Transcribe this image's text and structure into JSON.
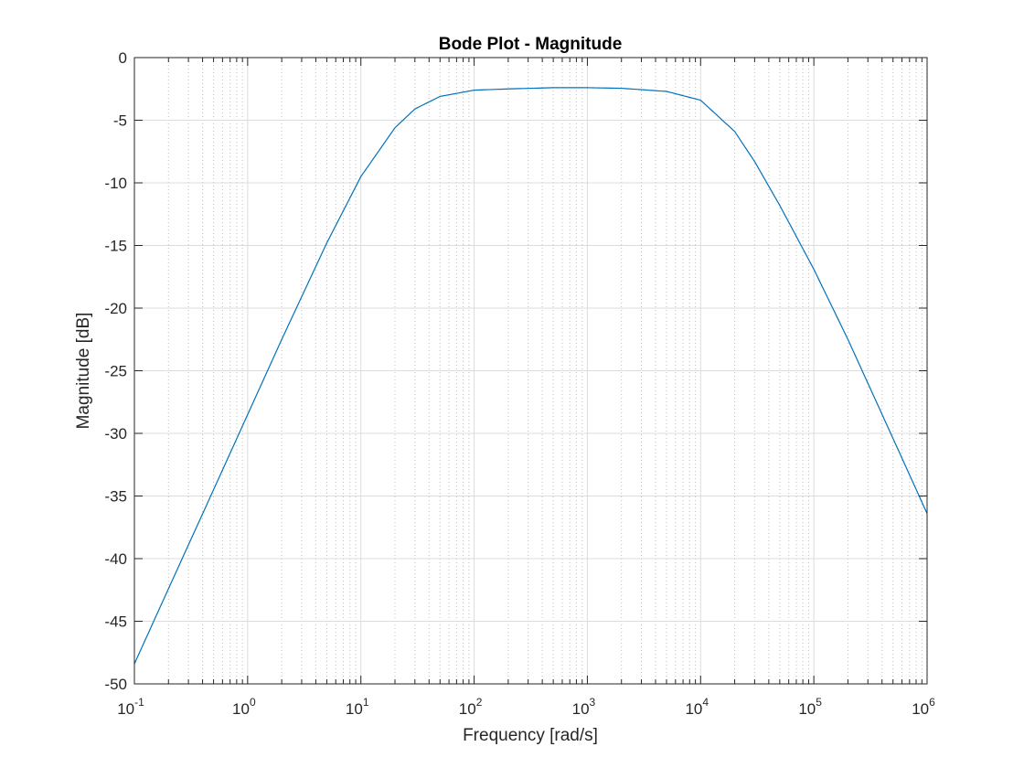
{
  "chart_data": {
    "type": "line",
    "title": "Bode Plot - Magnitude",
    "xlabel": "Frequency [rad/s]",
    "ylabel": "Magnitude [dB]",
    "xscale": "log",
    "xlim": [
      0.1,
      1000000
    ],
    "ylim": [
      -50,
      0
    ],
    "grid": "on",
    "minor_grid": "on",
    "line_color": "#0072BD",
    "x_ticks": [
      {
        "base": "10",
        "exp": "-1",
        "value": 0.1
      },
      {
        "base": "10",
        "exp": "0",
        "value": 1
      },
      {
        "base": "10",
        "exp": "1",
        "value": 10
      },
      {
        "base": "10",
        "exp": "2",
        "value": 100
      },
      {
        "base": "10",
        "exp": "3",
        "value": 1000
      },
      {
        "base": "10",
        "exp": "4",
        "value": 10000
      },
      {
        "base": "10",
        "exp": "5",
        "value": 100000
      },
      {
        "base": "10",
        "exp": "6",
        "value": 1000000
      }
    ],
    "y_ticks": [
      {
        "label": "0",
        "value": 0
      },
      {
        "label": "-5",
        "value": -5
      },
      {
        "label": "-10",
        "value": -10
      },
      {
        "label": "-15",
        "value": -15
      },
      {
        "label": "-20",
        "value": -20
      },
      {
        "label": "-25",
        "value": -25
      },
      {
        "label": "-30",
        "value": -30
      },
      {
        "label": "-35",
        "value": -35
      },
      {
        "label": "-40",
        "value": -40
      },
      {
        "label": "-45",
        "value": -45
      },
      {
        "label": "-50",
        "value": -50
      }
    ],
    "series": [
      {
        "x": [
          0.1,
          0.2,
          0.5,
          1,
          2,
          5,
          10,
          20,
          30,
          50,
          100,
          200,
          500,
          1000,
          2000,
          5000,
          10000,
          20000,
          30000,
          50000,
          100000,
          200000,
          500000,
          1000000
        ],
        "y": [
          -48.4,
          -42.4,
          -34.5,
          -28.5,
          -22.5,
          -14.8,
          -9.5,
          -5.6,
          -4.1,
          -3.1,
          -2.6,
          -2.5,
          -2.4,
          -2.4,
          -2.45,
          -2.7,
          -3.4,
          -5.9,
          -8.3,
          -11.8,
          -16.9,
          -22.5,
          -30.4,
          -36.4
        ]
      }
    ]
  }
}
